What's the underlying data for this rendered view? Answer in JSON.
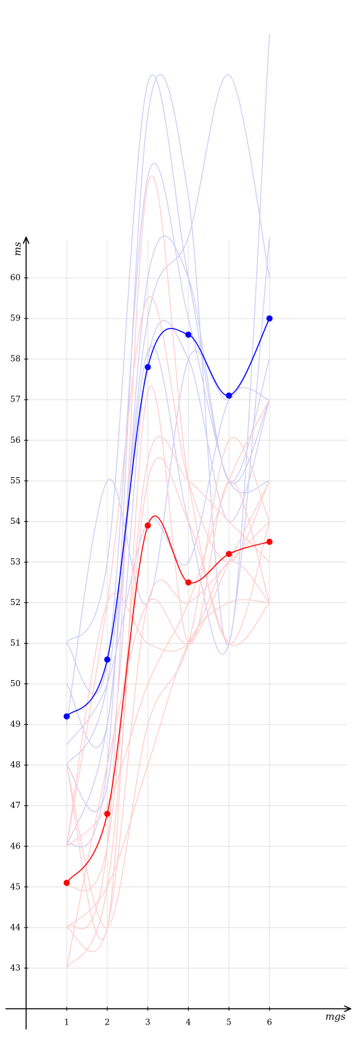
{
  "chart_data": {
    "type": "line",
    "x_label": "mgs",
    "y_label": "ms",
    "x": [
      1,
      2,
      3,
      4,
      5,
      6
    ],
    "xlim": [
      0,
      8
    ],
    "xticks": [
      1,
      2,
      3,
      4,
      5,
      6
    ],
    "ylim": [
      42,
      61
    ],
    "yticks": [
      43,
      44,
      45,
      46,
      47,
      48,
      49,
      50,
      51,
      52,
      53,
      54,
      55,
      56,
      57,
      58,
      59,
      60
    ],
    "grid": true,
    "series": [
      {
        "color": "#ccccf5",
        "values": [
          46,
          48,
          64,
          62,
          51,
          66
        ]
      },
      {
        "color": "#ccccf5",
        "values": [
          51,
          53,
          64.8,
          60,
          55,
          57
        ]
      },
      {
        "color": "#ccccf5",
        "values": [
          48,
          50,
          59,
          61,
          65,
          60
        ]
      },
      {
        "color": "#ccccf5",
        "values": [
          51,
          50.5,
          62.5,
          59,
          55,
          55
        ]
      },
      {
        "color": "#ccccf5",
        "values": [
          50,
          49,
          60,
          60,
          55,
          58
        ]
      },
      {
        "color": "#ccccf5",
        "values": [
          49,
          55,
          52,
          58,
          57,
          59
        ]
      },
      {
        "color": "#ccccf5",
        "values": [
          48,
          47.5,
          58,
          58,
          54,
          57
        ]
      },
      {
        "color": "#ccccf5",
        "values": [
          46,
          49,
          58.2,
          54,
          51,
          61
        ]
      },
      {
        "color": "#ccccf5",
        "values": [
          48.5,
          50,
          54,
          53,
          57,
          57
        ]
      },
      {
        "color": "#ffcccc",
        "values": [
          44,
          46,
          62.3,
          55,
          51,
          54
        ]
      },
      {
        "color": "#ffcccc",
        "values": [
          46,
          52,
          59.5,
          55,
          53,
          55
        ]
      },
      {
        "color": "#ffcccc",
        "values": [
          48,
          44,
          57.2,
          51,
          55,
          52
        ]
      },
      {
        "color": "#ffcccc",
        "values": [
          43,
          45,
          55,
          54,
          51,
          52
        ]
      },
      {
        "color": "#ffcccc",
        "values": [
          44,
          44,
          52,
          52,
          53,
          54
        ]
      },
      {
        "color": "#ffcccc",
        "values": [
          46,
          52,
          51,
          51,
          53,
          52
        ]
      },
      {
        "color": "#ffcccc",
        "values": [
          45,
          46,
          55.5,
          55,
          54,
          53
        ]
      },
      {
        "color": "#ffcccc",
        "values": [
          48,
          44,
          49,
          51,
          56,
          54
        ]
      },
      {
        "color": "#ffcccc",
        "values": [
          46,
          47,
          50,
          52,
          55,
          57
        ]
      },
      {
        "color": "#ffcccc",
        "values": [
          44,
          45,
          48,
          51,
          52,
          52
        ]
      },
      {
        "color": "#ffcccc",
        "values": [
          43,
          48,
          52,
          51,
          53,
          55
        ]
      },
      {
        "color": "#0000ff",
        "markers": true,
        "values": [
          49.2,
          50.6,
          57.8,
          58.6,
          57.1,
          59
        ]
      },
      {
        "color": "#ff0000",
        "markers": true,
        "values": [
          45.1,
          46.8,
          53.9,
          52.5,
          53.2,
          53.5
        ]
      }
    ]
  }
}
